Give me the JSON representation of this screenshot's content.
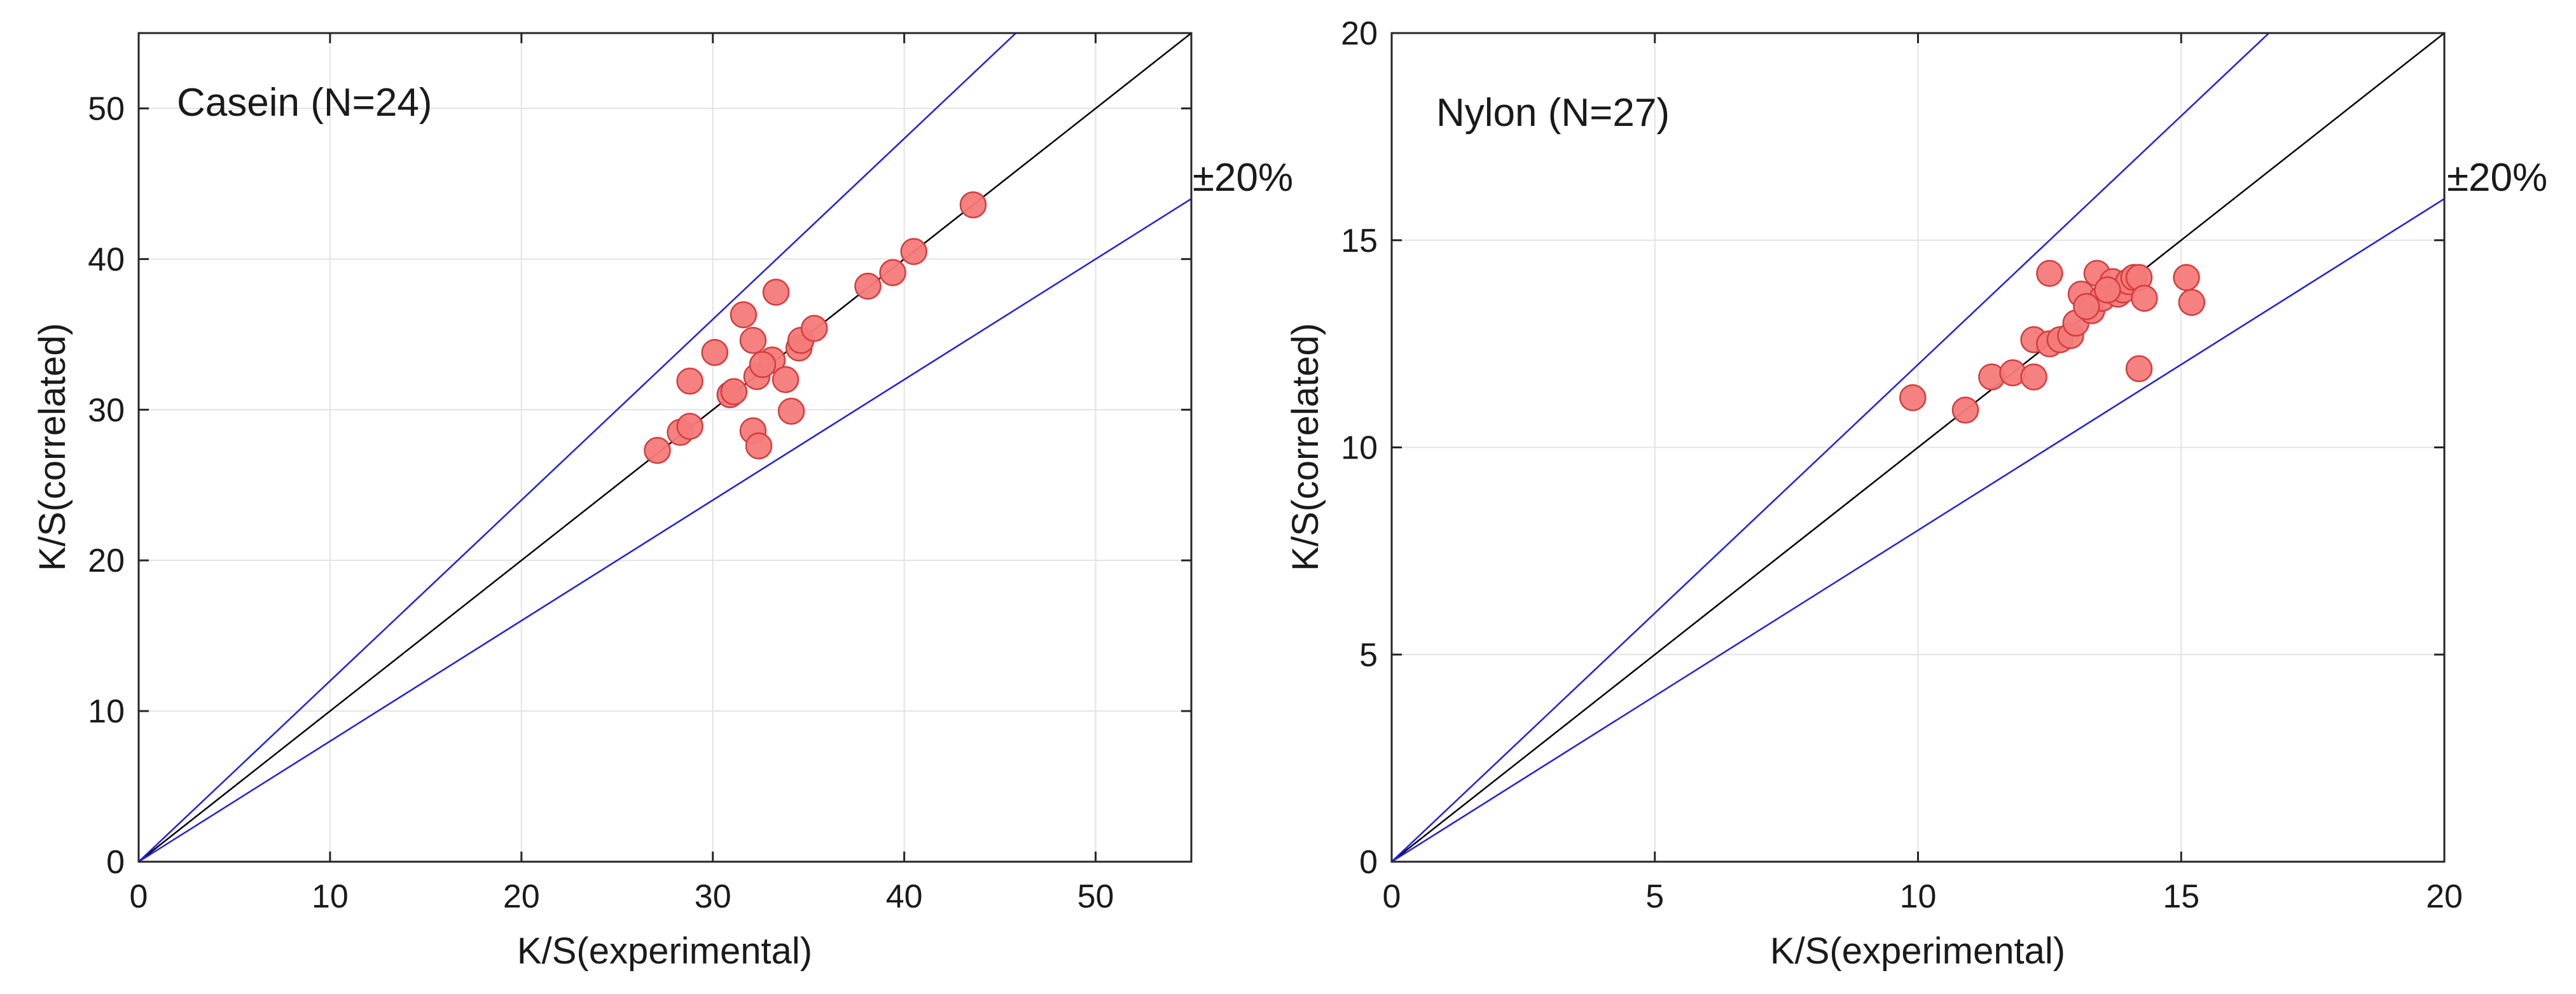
{
  "chart_data": [
    {
      "type": "scatter",
      "title": "Casein (N=24)",
      "xlabel": "K/S(experimental)",
      "ylabel": "K/S(correlated)",
      "xlim": [
        0,
        55
      ],
      "ylim": [
        0,
        55
      ],
      "xticks": [
        0,
        10,
        20,
        30,
        40,
        50
      ],
      "yticks": [
        0,
        10,
        20,
        30,
        40,
        50
      ],
      "grid": true,
      "band_label": "±20%",
      "reference_lines": [
        {
          "name": "y = x",
          "slope": 1.0,
          "color": "#000000"
        },
        {
          "name": "+20%",
          "slope": 1.2,
          "color": "#1f1fe0"
        },
        {
          "name": "-20%",
          "slope": 0.8,
          "color": "#1f1fe0"
        }
      ],
      "marker_color": "#f47a7a",
      "marker_edge": "#d43c3c",
      "points": [
        [
          27.1,
          27.3
        ],
        [
          28.3,
          28.5
        ],
        [
          28.8,
          28.9
        ],
        [
          28.8,
          31.9
        ],
        [
          30.1,
          33.8
        ],
        [
          30.9,
          31.0
        ],
        [
          31.1,
          31.2
        ],
        [
          31.6,
          36.3
        ],
        [
          32.1,
          34.6
        ],
        [
          32.1,
          28.6
        ],
        [
          32.3,
          32.2
        ],
        [
          32.4,
          27.6
        ],
        [
          33.1,
          33.3
        ],
        [
          33.3,
          37.8
        ],
        [
          33.8,
          32.0
        ],
        [
          34.1,
          29.9
        ],
        [
          34.5,
          34.1
        ],
        [
          34.6,
          34.6
        ],
        [
          35.3,
          35.4
        ],
        [
          38.1,
          38.2
        ],
        [
          39.4,
          39.1
        ],
        [
          40.5,
          40.5
        ],
        [
          43.6,
          43.6
        ],
        [
          32.6,
          33.0
        ]
      ]
    },
    {
      "type": "scatter",
      "title": "Nylon (N=27)",
      "xlabel": "K/S(experimental)",
      "ylabel": "K/S(correlated)",
      "xlim": [
        0,
        20
      ],
      "ylim": [
        0,
        20
      ],
      "xticks": [
        0,
        5,
        10,
        15,
        20
      ],
      "yticks": [
        0,
        5,
        10,
        15,
        20
      ],
      "grid": true,
      "band_label": "±20%",
      "reference_lines": [
        {
          "name": "y = x",
          "slope": 1.0,
          "color": "#000000"
        },
        {
          "name": "+20%",
          "slope": 1.2,
          "color": "#1f1fe0"
        },
        {
          "name": "-20%",
          "slope": 0.8,
          "color": "#1f1fe0"
        }
      ],
      "marker_color": "#f47a7a",
      "marker_edge": "#d43c3c",
      "points": [
        [
          9.9,
          11.2
        ],
        [
          10.9,
          10.9
        ],
        [
          11.4,
          11.7
        ],
        [
          11.8,
          11.8
        ],
        [
          12.2,
          11.7
        ],
        [
          12.2,
          12.6
        ],
        [
          12.5,
          14.2
        ],
        [
          12.5,
          12.5
        ],
        [
          12.7,
          12.6
        ],
        [
          12.9,
          12.7
        ],
        [
          13.0,
          13.0
        ],
        [
          13.1,
          13.7
        ],
        [
          13.3,
          13.3
        ],
        [
          13.4,
          14.2
        ],
        [
          13.5,
          13.6
        ],
        [
          13.7,
          14.0
        ],
        [
          13.8,
          13.7
        ],
        [
          13.9,
          13.8
        ],
        [
          14.0,
          14.0
        ],
        [
          14.1,
          14.1
        ],
        [
          14.2,
          14.1
        ],
        [
          14.3,
          13.6
        ],
        [
          14.2,
          11.9
        ],
        [
          15.1,
          14.1
        ],
        [
          15.2,
          13.5
        ],
        [
          13.6,
          13.8
        ],
        [
          13.2,
          13.4
        ]
      ]
    }
  ]
}
